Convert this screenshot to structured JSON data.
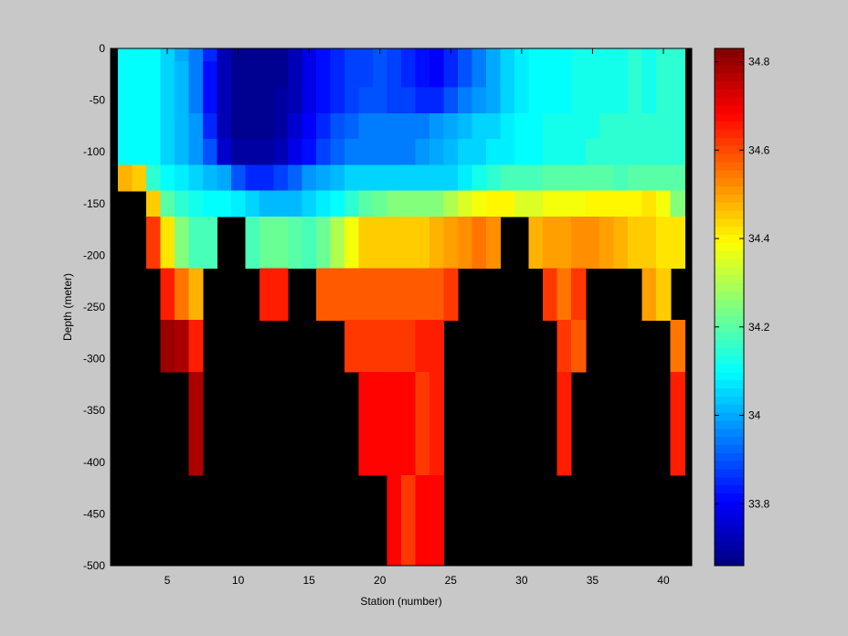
{
  "chart_data": {
    "type": "heatmap",
    "title": "",
    "xlabel": "Station (number)",
    "ylabel": "Depth (meter)",
    "xlim": [
      1,
      42
    ],
    "ylim": [
      -500,
      0
    ],
    "x_ticks": [
      5,
      10,
      15,
      20,
      25,
      30,
      35,
      40
    ],
    "y_ticks": [
      0,
      -50,
      -100,
      -150,
      -200,
      -250,
      -300,
      -350,
      -400,
      -450,
      -500
    ],
    "colorbar": {
      "colormap": "jet",
      "range": [
        33.66,
        34.83
      ],
      "ticks": [
        33.8,
        34,
        34.2,
        34.4,
        34.6,
        34.8
      ],
      "tick_labels": [
        "33.8",
        "34",
        "34.2",
        "34.4",
        "34.6",
        "34.8"
      ]
    },
    "no_data_color": "#000000",
    "grid": false,
    "stations": [
      2,
      3,
      4,
      5,
      6,
      7,
      8,
      9,
      10,
      11,
      12,
      13,
      14,
      15,
      16,
      17,
      18,
      19,
      20,
      21,
      22,
      23,
      24,
      25,
      26,
      27,
      28,
      29,
      30,
      31,
      32,
      33,
      34,
      35,
      36,
      37,
      38,
      39,
      40,
      41
    ],
    "depths": [
      0,
      -25,
      -50,
      -75,
      -100,
      -125,
      -150,
      -175,
      -200,
      -225,
      -250,
      -275,
      -300,
      -325,
      -350,
      -375,
      -400,
      -425,
      -450,
      -475,
      -500
    ],
    "salinity": [
      [
        34.1,
        34.1,
        34.1,
        34.05,
        34.0,
        33.95,
        33.85,
        33.72,
        33.68,
        33.68,
        33.68,
        33.68,
        33.72,
        33.78,
        33.82,
        33.85,
        33.88,
        33.88,
        33.9,
        33.88,
        33.85,
        33.82,
        33.8,
        33.85,
        33.9,
        33.95,
        34.0,
        34.05,
        34.08,
        34.1,
        34.1,
        34.1,
        34.12,
        34.12,
        34.12,
        34.12,
        34.15,
        34.12,
        34.15,
        34.15
      ],
      [
        34.1,
        34.1,
        34.1,
        34.05,
        34.02,
        33.95,
        33.82,
        33.72,
        33.68,
        33.68,
        33.68,
        33.68,
        33.72,
        33.78,
        33.82,
        33.85,
        33.88,
        33.88,
        33.9,
        33.88,
        33.85,
        33.82,
        33.8,
        33.85,
        33.9,
        33.95,
        34.0,
        34.05,
        34.08,
        34.1,
        34.1,
        34.1,
        34.12,
        34.12,
        34.12,
        34.12,
        34.15,
        34.12,
        34.15,
        34.15
      ],
      [
        34.1,
        34.1,
        34.1,
        34.05,
        34.02,
        33.95,
        33.82,
        33.72,
        33.68,
        33.68,
        33.68,
        33.7,
        33.72,
        33.78,
        33.82,
        33.85,
        33.88,
        33.9,
        33.9,
        33.88,
        33.88,
        33.85,
        33.85,
        33.9,
        33.95,
        33.98,
        34.0,
        34.05,
        34.08,
        34.1,
        34.1,
        34.1,
        34.12,
        34.12,
        34.12,
        34.12,
        34.15,
        34.12,
        34.15,
        34.15
      ],
      [
        34.1,
        34.1,
        34.1,
        34.05,
        34.02,
        33.98,
        33.85,
        33.72,
        33.68,
        33.68,
        33.68,
        33.7,
        33.75,
        33.8,
        33.85,
        33.9,
        33.92,
        33.95,
        33.95,
        33.95,
        33.95,
        33.95,
        33.98,
        34.0,
        34.02,
        34.05,
        34.05,
        34.08,
        34.1,
        34.1,
        34.12,
        34.12,
        34.12,
        34.12,
        34.15,
        34.15,
        34.15,
        34.15,
        34.15,
        34.15
      ],
      [
        34.1,
        34.1,
        34.1,
        34.05,
        34.02,
        33.98,
        33.9,
        33.75,
        33.7,
        33.7,
        33.7,
        33.72,
        33.78,
        33.82,
        33.88,
        33.92,
        33.95,
        33.95,
        33.95,
        33.95,
        33.95,
        33.98,
        34.0,
        34.02,
        34.05,
        34.05,
        34.08,
        34.08,
        34.1,
        34.1,
        34.12,
        34.12,
        34.12,
        34.15,
        34.15,
        34.15,
        34.15,
        34.15,
        34.15,
        34.15
      ],
      [
        34.48,
        34.45,
        34.15,
        34.1,
        34.08,
        34.05,
        34.02,
        34.0,
        33.9,
        33.85,
        33.85,
        33.88,
        33.92,
        33.98,
        34.0,
        34.02,
        34.05,
        34.05,
        34.05,
        34.05,
        34.05,
        34.05,
        34.05,
        34.05,
        34.08,
        34.12,
        34.15,
        34.18,
        34.18,
        34.18,
        34.2,
        34.2,
        34.2,
        34.2,
        34.2,
        34.18,
        34.2,
        34.2,
        34.2,
        34.2
      ],
      [
        null,
        null,
        34.45,
        34.2,
        34.15,
        34.12,
        34.1,
        34.1,
        34.08,
        34.05,
        34.02,
        34.02,
        34.02,
        34.05,
        34.08,
        34.1,
        34.15,
        34.2,
        34.22,
        34.25,
        34.25,
        34.25,
        34.25,
        34.3,
        34.35,
        34.38,
        34.4,
        34.4,
        34.35,
        34.35,
        34.38,
        34.38,
        34.38,
        34.4,
        34.4,
        34.4,
        34.4,
        34.42,
        34.38,
        34.25
      ],
      [
        null,
        null,
        34.62,
        34.42,
        34.25,
        34.18,
        34.18,
        null,
        null,
        34.18,
        34.22,
        34.22,
        34.2,
        34.18,
        34.22,
        34.3,
        34.38,
        34.45,
        34.45,
        34.45,
        34.45,
        34.45,
        34.48,
        34.5,
        34.52,
        34.55,
        34.52,
        null,
        null,
        34.48,
        34.5,
        34.5,
        34.52,
        34.52,
        34.5,
        34.48,
        34.45,
        34.45,
        34.42,
        34.42
      ],
      [
        null,
        null,
        34.62,
        34.42,
        34.25,
        34.18,
        34.18,
        null,
        null,
        34.18,
        34.22,
        34.22,
        34.2,
        34.18,
        34.22,
        34.3,
        34.38,
        34.45,
        34.45,
        34.45,
        34.45,
        34.45,
        34.48,
        34.5,
        34.52,
        34.55,
        34.52,
        null,
        null,
        34.48,
        34.5,
        34.5,
        34.52,
        34.52,
        34.5,
        34.48,
        34.45,
        34.45,
        34.42,
        34.42
      ],
      [
        null,
        null,
        null,
        34.65,
        34.55,
        34.48,
        null,
        null,
        null,
        null,
        34.65,
        34.65,
        null,
        null,
        34.58,
        34.58,
        34.58,
        34.58,
        34.58,
        34.58,
        34.58,
        34.58,
        34.58,
        34.62,
        null,
        null,
        null,
        null,
        null,
        null,
        34.62,
        34.55,
        34.62,
        null,
        null,
        null,
        null,
        34.5,
        34.45,
        null
      ],
      [
        null,
        null,
        null,
        34.65,
        34.55,
        34.48,
        null,
        null,
        null,
        null,
        34.65,
        34.65,
        null,
        null,
        34.58,
        34.58,
        34.58,
        34.58,
        34.58,
        34.58,
        34.58,
        34.58,
        34.58,
        34.62,
        null,
        null,
        null,
        null,
        null,
        null,
        34.62,
        34.55,
        34.62,
        null,
        null,
        null,
        null,
        34.5,
        34.45,
        null
      ],
      [
        null,
        null,
        null,
        34.8,
        34.78,
        34.65,
        null,
        null,
        null,
        null,
        null,
        null,
        null,
        null,
        null,
        null,
        34.62,
        34.62,
        34.62,
        34.62,
        34.62,
        34.65,
        34.65,
        null,
        null,
        null,
        null,
        null,
        null,
        null,
        null,
        34.62,
        34.58,
        null,
        null,
        null,
        null,
        null,
        null,
        34.55
      ],
      [
        null,
        null,
        null,
        34.8,
        34.78,
        34.65,
        null,
        null,
        null,
        null,
        null,
        null,
        null,
        null,
        null,
        null,
        34.62,
        34.62,
        34.62,
        34.62,
        34.62,
        34.65,
        34.65,
        null,
        null,
        null,
        null,
        null,
        null,
        null,
        null,
        34.62,
        34.58,
        null,
        null,
        null,
        null,
        null,
        null,
        34.55
      ],
      [
        null,
        null,
        null,
        null,
        null,
        34.78,
        null,
        null,
        null,
        null,
        null,
        null,
        null,
        null,
        null,
        null,
        null,
        34.68,
        34.68,
        34.68,
        34.68,
        34.62,
        34.65,
        null,
        null,
        null,
        null,
        null,
        null,
        null,
        null,
        34.65,
        null,
        null,
        null,
        null,
        null,
        null,
        null,
        34.65
      ],
      [
        null,
        null,
        null,
        null,
        null,
        34.78,
        null,
        null,
        null,
        null,
        null,
        null,
        null,
        null,
        null,
        null,
        null,
        34.68,
        34.68,
        34.68,
        34.68,
        34.62,
        34.65,
        null,
        null,
        null,
        null,
        null,
        null,
        null,
        null,
        34.65,
        null,
        null,
        null,
        null,
        null,
        null,
        null,
        34.65
      ],
      [
        null,
        null,
        null,
        null,
        null,
        34.78,
        null,
        null,
        null,
        null,
        null,
        null,
        null,
        null,
        null,
        null,
        null,
        34.68,
        34.68,
        34.68,
        34.68,
        34.62,
        34.65,
        null,
        null,
        null,
        null,
        null,
        null,
        null,
        null,
        34.65,
        null,
        null,
        null,
        null,
        null,
        null,
        null,
        34.65
      ],
      [
        null,
        null,
        null,
        null,
        null,
        34.78,
        null,
        null,
        null,
        null,
        null,
        null,
        null,
        null,
        null,
        null,
        null,
        34.68,
        34.68,
        34.68,
        34.68,
        34.62,
        34.65,
        null,
        null,
        null,
        null,
        null,
        null,
        null,
        null,
        34.65,
        null,
        null,
        null,
        null,
        null,
        null,
        null,
        34.65
      ],
      [
        null,
        null,
        null,
        null,
        null,
        null,
        null,
        null,
        null,
        null,
        null,
        null,
        null,
        null,
        null,
        null,
        null,
        null,
        null,
        34.68,
        34.62,
        34.68,
        34.68,
        null,
        null,
        null,
        null,
        null,
        null,
        null,
        null,
        null,
        null,
        null,
        null,
        null,
        null,
        null,
        null,
        null
      ],
      [
        null,
        null,
        null,
        null,
        null,
        null,
        null,
        null,
        null,
        null,
        null,
        null,
        null,
        null,
        null,
        null,
        null,
        null,
        null,
        34.68,
        34.62,
        34.68,
        34.68,
        null,
        null,
        null,
        null,
        null,
        null,
        null,
        null,
        null,
        null,
        null,
        null,
        null,
        null,
        null,
        null,
        null
      ],
      [
        null,
        null,
        null,
        null,
        null,
        null,
        null,
        null,
        null,
        null,
        null,
        null,
        null,
        null,
        null,
        null,
        null,
        null,
        null,
        34.68,
        34.62,
        34.68,
        34.68,
        null,
        null,
        null,
        null,
        null,
        null,
        null,
        null,
        null,
        null,
        null,
        null,
        null,
        null,
        null,
        null,
        null
      ],
      [
        null,
        null,
        null,
        null,
        null,
        null,
        null,
        null,
        null,
        null,
        null,
        null,
        null,
        null,
        null,
        null,
        null,
        null,
        null,
        34.68,
        34.62,
        34.68,
        34.68,
        null,
        null,
        null,
        null,
        null,
        null,
        null,
        null,
        null,
        null,
        null,
        null,
        null,
        null,
        null,
        null,
        null
      ]
    ]
  }
}
